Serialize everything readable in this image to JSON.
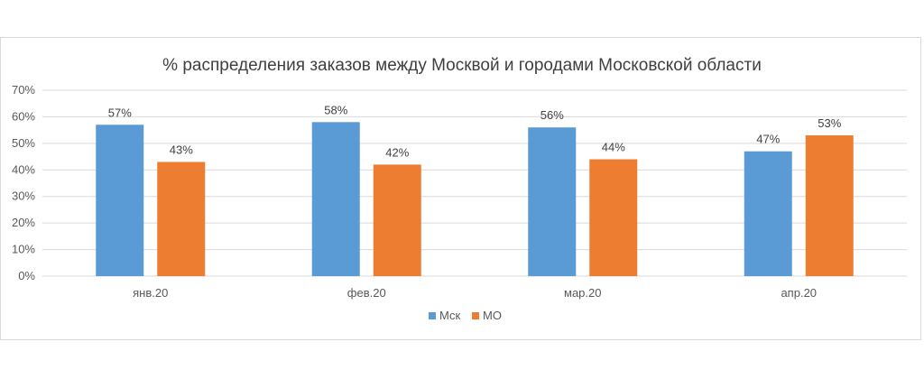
{
  "chart_data": {
    "type": "bar",
    "title": "% распределения заказов между Москвой и городами Московской области",
    "categories": [
      "янв.20",
      "фев.20",
      "мар.20",
      "апр.20"
    ],
    "series": [
      {
        "name": "Мск",
        "values": [
          57,
          58,
          56,
          47
        ],
        "labels": [
          "57%",
          "58%",
          "56%",
          "47%"
        ],
        "color": "#5b9bd5"
      },
      {
        "name": "МО",
        "values": [
          43,
          42,
          44,
          53
        ],
        "labels": [
          "43%",
          "42%",
          "44%",
          "53%"
        ],
        "color": "#ed7d31"
      }
    ],
    "ylim": [
      0,
      70
    ],
    "yticks": [
      "0%",
      "10%",
      "20%",
      "30%",
      "40%",
      "50%",
      "60%",
      "70%"
    ],
    "grid": true,
    "legend_position": "bottom",
    "xlabel": "",
    "ylabel": ""
  }
}
